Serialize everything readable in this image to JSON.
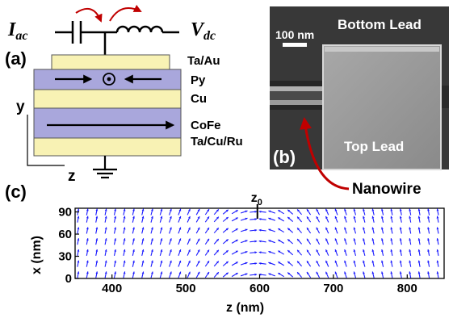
{
  "panels": {
    "a": "(a)",
    "b": "(b)",
    "c": "(c)"
  },
  "circuit": {
    "iac_main": "I",
    "iac_sub": "ac",
    "vdc_main": "V",
    "vdc_sub": "dc"
  },
  "stack": {
    "layers": [
      {
        "label": "Ta/Au",
        "color": "#f8f2b4"
      },
      {
        "label": "Py",
        "color": "#a9a7dc"
      },
      {
        "label": "Cu",
        "color": "#f8f2b4"
      },
      {
        "label": "CoFe",
        "color": "#a9a7dc"
      },
      {
        "label": "Ta/Cu/Ru",
        "color": "#f8f2b4"
      }
    ],
    "axis_y": "y",
    "axis_z": "z"
  },
  "sem": {
    "scale_bar": "100 nm",
    "bottom_lead": "Bottom Lead",
    "top_lead": "Top Lead",
    "nanowire": "Nanowire",
    "arrow_color": "#c00000"
  },
  "chart_data": {
    "type": "quiver",
    "title": "",
    "xlabel": "z (nm)",
    "ylabel": "x (nm)",
    "xlim": [
      350,
      850
    ],
    "ylim": [
      0,
      95
    ],
    "xticks": [
      400,
      500,
      600,
      700,
      800
    ],
    "yticks": [
      0,
      30,
      60,
      90
    ],
    "yticks_minor_labels": [
      "0",
      "15",
      "30",
      "45",
      "60",
      "75",
      "90"
    ],
    "annotation_main": "z",
    "annotation_sub": "0",
    "annotation_z": 597,
    "rows_x": [
      5,
      20,
      35,
      50,
      65,
      80,
      90
    ],
    "z_step": 12.5,
    "wall_center": 597,
    "wall_width": 45,
    "arrow_color": "#1a1aff"
  }
}
